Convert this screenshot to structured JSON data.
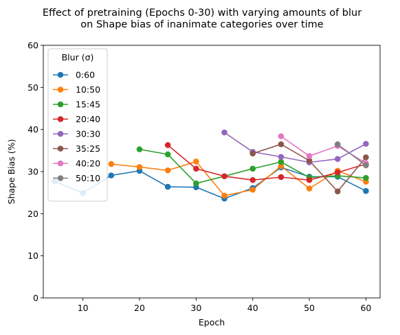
{
  "chart_data": {
    "type": "line",
    "title": "Effect of pretraining (Epochs 0-30) with varying amounts of blur\non Shape bias of inanimate categories over time",
    "xlabel": "Epoch",
    "ylabel": "Shape Bias (%)",
    "xlim": [
      3,
      62.5
    ],
    "ylim": [
      0,
      60
    ],
    "xticks": [
      10,
      20,
      30,
      40,
      50,
      60
    ],
    "yticks": [
      0,
      10,
      20,
      30,
      40,
      50,
      60
    ],
    "grid": false,
    "legend": {
      "title": "Blur (σ)",
      "placement": "top-left"
    },
    "series": [
      {
        "name": "0:60",
        "color": "#1f77b4",
        "x": [
          5,
          10,
          15,
          20,
          25,
          30,
          35,
          40,
          45,
          50,
          55,
          60
        ],
        "y": [
          27.7,
          24.9,
          29.1,
          30.2,
          26.4,
          26.3,
          23.6,
          26.1,
          31.0,
          28.8,
          28.8,
          25.4
        ]
      },
      {
        "name": "10:50",
        "color": "#ff7f0e",
        "x": [
          15,
          20,
          25,
          30,
          35,
          40,
          45,
          50,
          55,
          60
        ],
        "y": [
          31.8,
          31.1,
          30.3,
          32.4,
          24.3,
          25.7,
          31.3,
          26.0,
          30.2,
          27.6
        ]
      },
      {
        "name": "15:45",
        "color": "#2ca02c",
        "x": [
          20,
          25,
          30,
          35,
          40,
          45,
          50,
          55,
          60
        ],
        "y": [
          35.3,
          34.1,
          27.2,
          28.9,
          30.7,
          32.3,
          28.6,
          29.0,
          28.5
        ]
      },
      {
        "name": "20:40",
        "color": "#d62728",
        "x": [
          25,
          30,
          35,
          40,
          45,
          50,
          55,
          60
        ],
        "y": [
          36.3,
          30.7,
          28.9,
          28.0,
          28.7,
          28.0,
          29.8,
          31.8
        ]
      },
      {
        "name": "30:30",
        "color": "#9467bd",
        "x": [
          35,
          40,
          45,
          50,
          55,
          60
        ],
        "y": [
          39.3,
          34.7,
          33.5,
          32.2,
          33.0,
          36.6
        ]
      },
      {
        "name": "35:25",
        "color": "#8c564b",
        "x": [
          40,
          45,
          50,
          55,
          60
        ],
        "y": [
          34.3,
          36.5,
          32.6,
          25.3,
          33.4
        ]
      },
      {
        "name": "40:20",
        "color": "#e377c2",
        "x": [
          45,
          50,
          55,
          60
        ],
        "y": [
          38.4,
          33.7,
          36.1,
          32.0
        ]
      },
      {
        "name": "50:10",
        "color": "#7f7f7f",
        "x": [
          55,
          60
        ],
        "y": [
          36.5,
          31.5
        ]
      }
    ]
  }
}
